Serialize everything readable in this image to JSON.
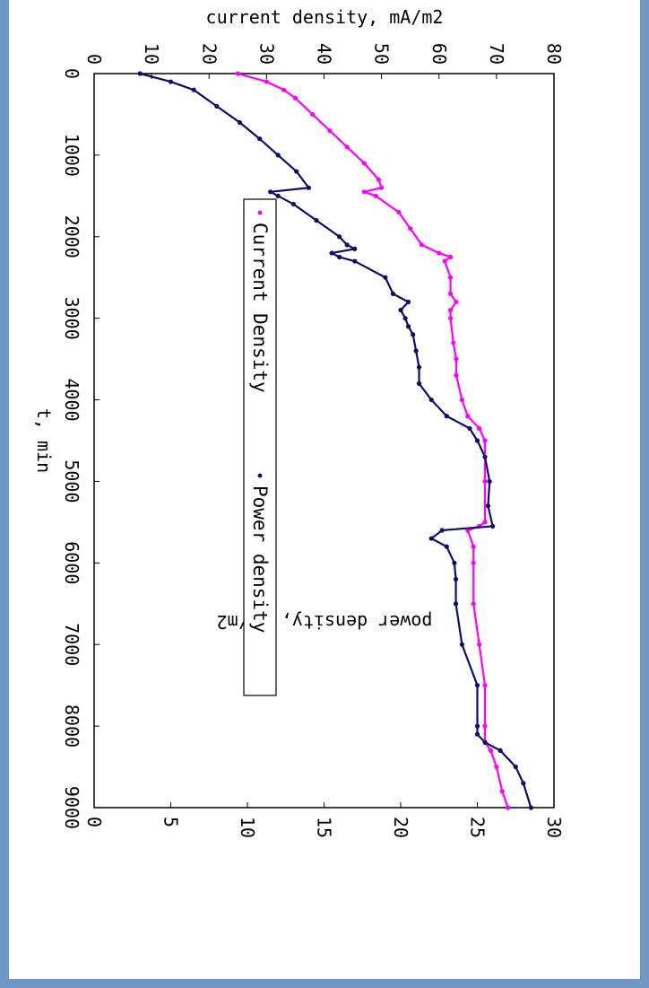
{
  "chart_data": {
    "type": "scatter",
    "xlabel": "t, min",
    "ylabel": "current density, mA/m2",
    "y2label": "power density, mW/m2",
    "xlim": [
      0,
      9000
    ],
    "ylim": [
      0,
      80
    ],
    "y2lim": [
      0,
      30
    ],
    "xticks": [
      "0",
      "1000",
      "2000",
      "3000",
      "4000",
      "5000",
      "6000",
      "7000",
      "8000",
      "9000"
    ],
    "yticks": [
      "0",
      "10",
      "20",
      "30",
      "40",
      "50",
      "60",
      "70",
      "80"
    ],
    "y2ticks": [
      "0",
      "5",
      "10",
      "15",
      "20",
      "25",
      "30"
    ],
    "legend_position": "top",
    "series": [
      {
        "name": "Current Density",
        "axis": "left",
        "color": "#ff00ff",
        "x": [
          0,
          100,
          200,
          300,
          500,
          700,
          900,
          1100,
          1300,
          1400,
          1450,
          1500,
          1700,
          1900,
          2100,
          2200,
          2250,
          2300,
          2500,
          2700,
          2800,
          2900,
          3000,
          3300,
          3500,
          3700,
          4000,
          4200,
          4350,
          4500,
          5000,
          5500,
          5550,
          5600,
          5800,
          6000,
          6500,
          7000,
          7500,
          8000,
          8200,
          8300,
          8500,
          8800,
          9000
        ],
        "y": [
          25,
          30,
          33,
          35,
          38,
          41,
          44,
          47,
          49.5,
          50,
          47,
          49,
          53,
          55,
          57,
          60,
          62,
          61,
          62,
          62,
          63,
          62,
          62,
          62.5,
          63,
          63,
          64,
          65,
          67,
          68,
          68,
          68,
          67,
          65,
          66,
          66,
          66,
          67,
          68,
          68,
          68,
          69,
          70,
          71,
          72
        ]
      },
      {
        "name": "Power density",
        "axis": "right",
        "color": "#0d0d6b",
        "x": [
          0,
          100,
          200,
          400,
          600,
          800,
          1000,
          1200,
          1400,
          1450,
          1500,
          1600,
          1800,
          2000,
          2100,
          2150,
          2200,
          2250,
          2300,
          2500,
          2700,
          2800,
          2900,
          3000,
          3100,
          3200,
          3400,
          3600,
          3800,
          4000,
          4200,
          4350,
          4500,
          4700,
          5000,
          5300,
          5550,
          5600,
          5700,
          5800,
          6000,
          6200,
          6500,
          7000,
          7500,
          8000,
          8100,
          8200,
          8300,
          8500,
          8700,
          9000
        ],
        "y": [
          3,
          5,
          6.5,
          8,
          9.5,
          10.8,
          12,
          13.2,
          14,
          11.5,
          12,
          13,
          14.5,
          16,
          16.5,
          17,
          15.5,
          16,
          17,
          19,
          19.5,
          20.5,
          20,
          20.3,
          20.5,
          20.8,
          21,
          21.2,
          21.2,
          22,
          23,
          24.5,
          25,
          25.5,
          25.8,
          25.7,
          26,
          22.7,
          22,
          23,
          23.5,
          23.6,
          23.6,
          24,
          25,
          25,
          25,
          25.5,
          26.5,
          27.5,
          28,
          28.5
        ]
      }
    ]
  }
}
